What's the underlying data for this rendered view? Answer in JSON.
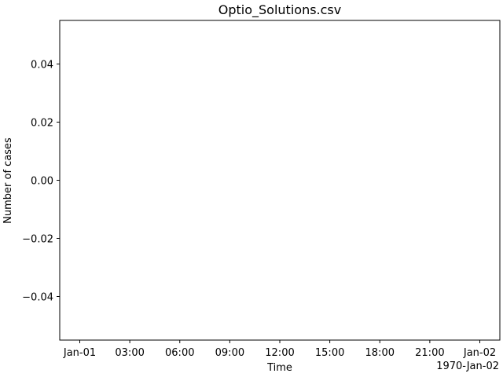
{
  "chart_data": {
    "type": "line",
    "title": "Optio_Solutions.csv",
    "xlabel": "Time",
    "ylabel": "Number of cases",
    "x_offset_label": "1970-Jan-02",
    "x_range": [
      "1970-01-01T00:00",
      "1970-01-02T00:00"
    ],
    "x_ticks": [
      {
        "x": "1970-01-01T00:00",
        "label": "Jan-01"
      },
      {
        "x": "1970-01-01T03:00",
        "label": "03:00"
      },
      {
        "x": "1970-01-01T06:00",
        "label": "06:00"
      },
      {
        "x": "1970-01-01T09:00",
        "label": "09:00"
      },
      {
        "x": "1970-01-01T12:00",
        "label": "12:00"
      },
      {
        "x": "1970-01-01T15:00",
        "label": "15:00"
      },
      {
        "x": "1970-01-01T18:00",
        "label": "18:00"
      },
      {
        "x": "1970-01-01T21:00",
        "label": "21:00"
      },
      {
        "x": "1970-01-02T00:00",
        "label": "Jan-02"
      }
    ],
    "ylim": [
      -0.055,
      0.055
    ],
    "y_ticks": [
      {
        "y": 0.04,
        "label": "0.04"
      },
      {
        "y": 0.02,
        "label": "0.02"
      },
      {
        "y": 0.0,
        "label": "0.00"
      },
      {
        "y": -0.02,
        "label": "−0.02"
      },
      {
        "y": -0.04,
        "label": "−0.04"
      }
    ],
    "series": [],
    "grid": false,
    "colors": {
      "axes": "#000000",
      "background": "#ffffff"
    }
  }
}
